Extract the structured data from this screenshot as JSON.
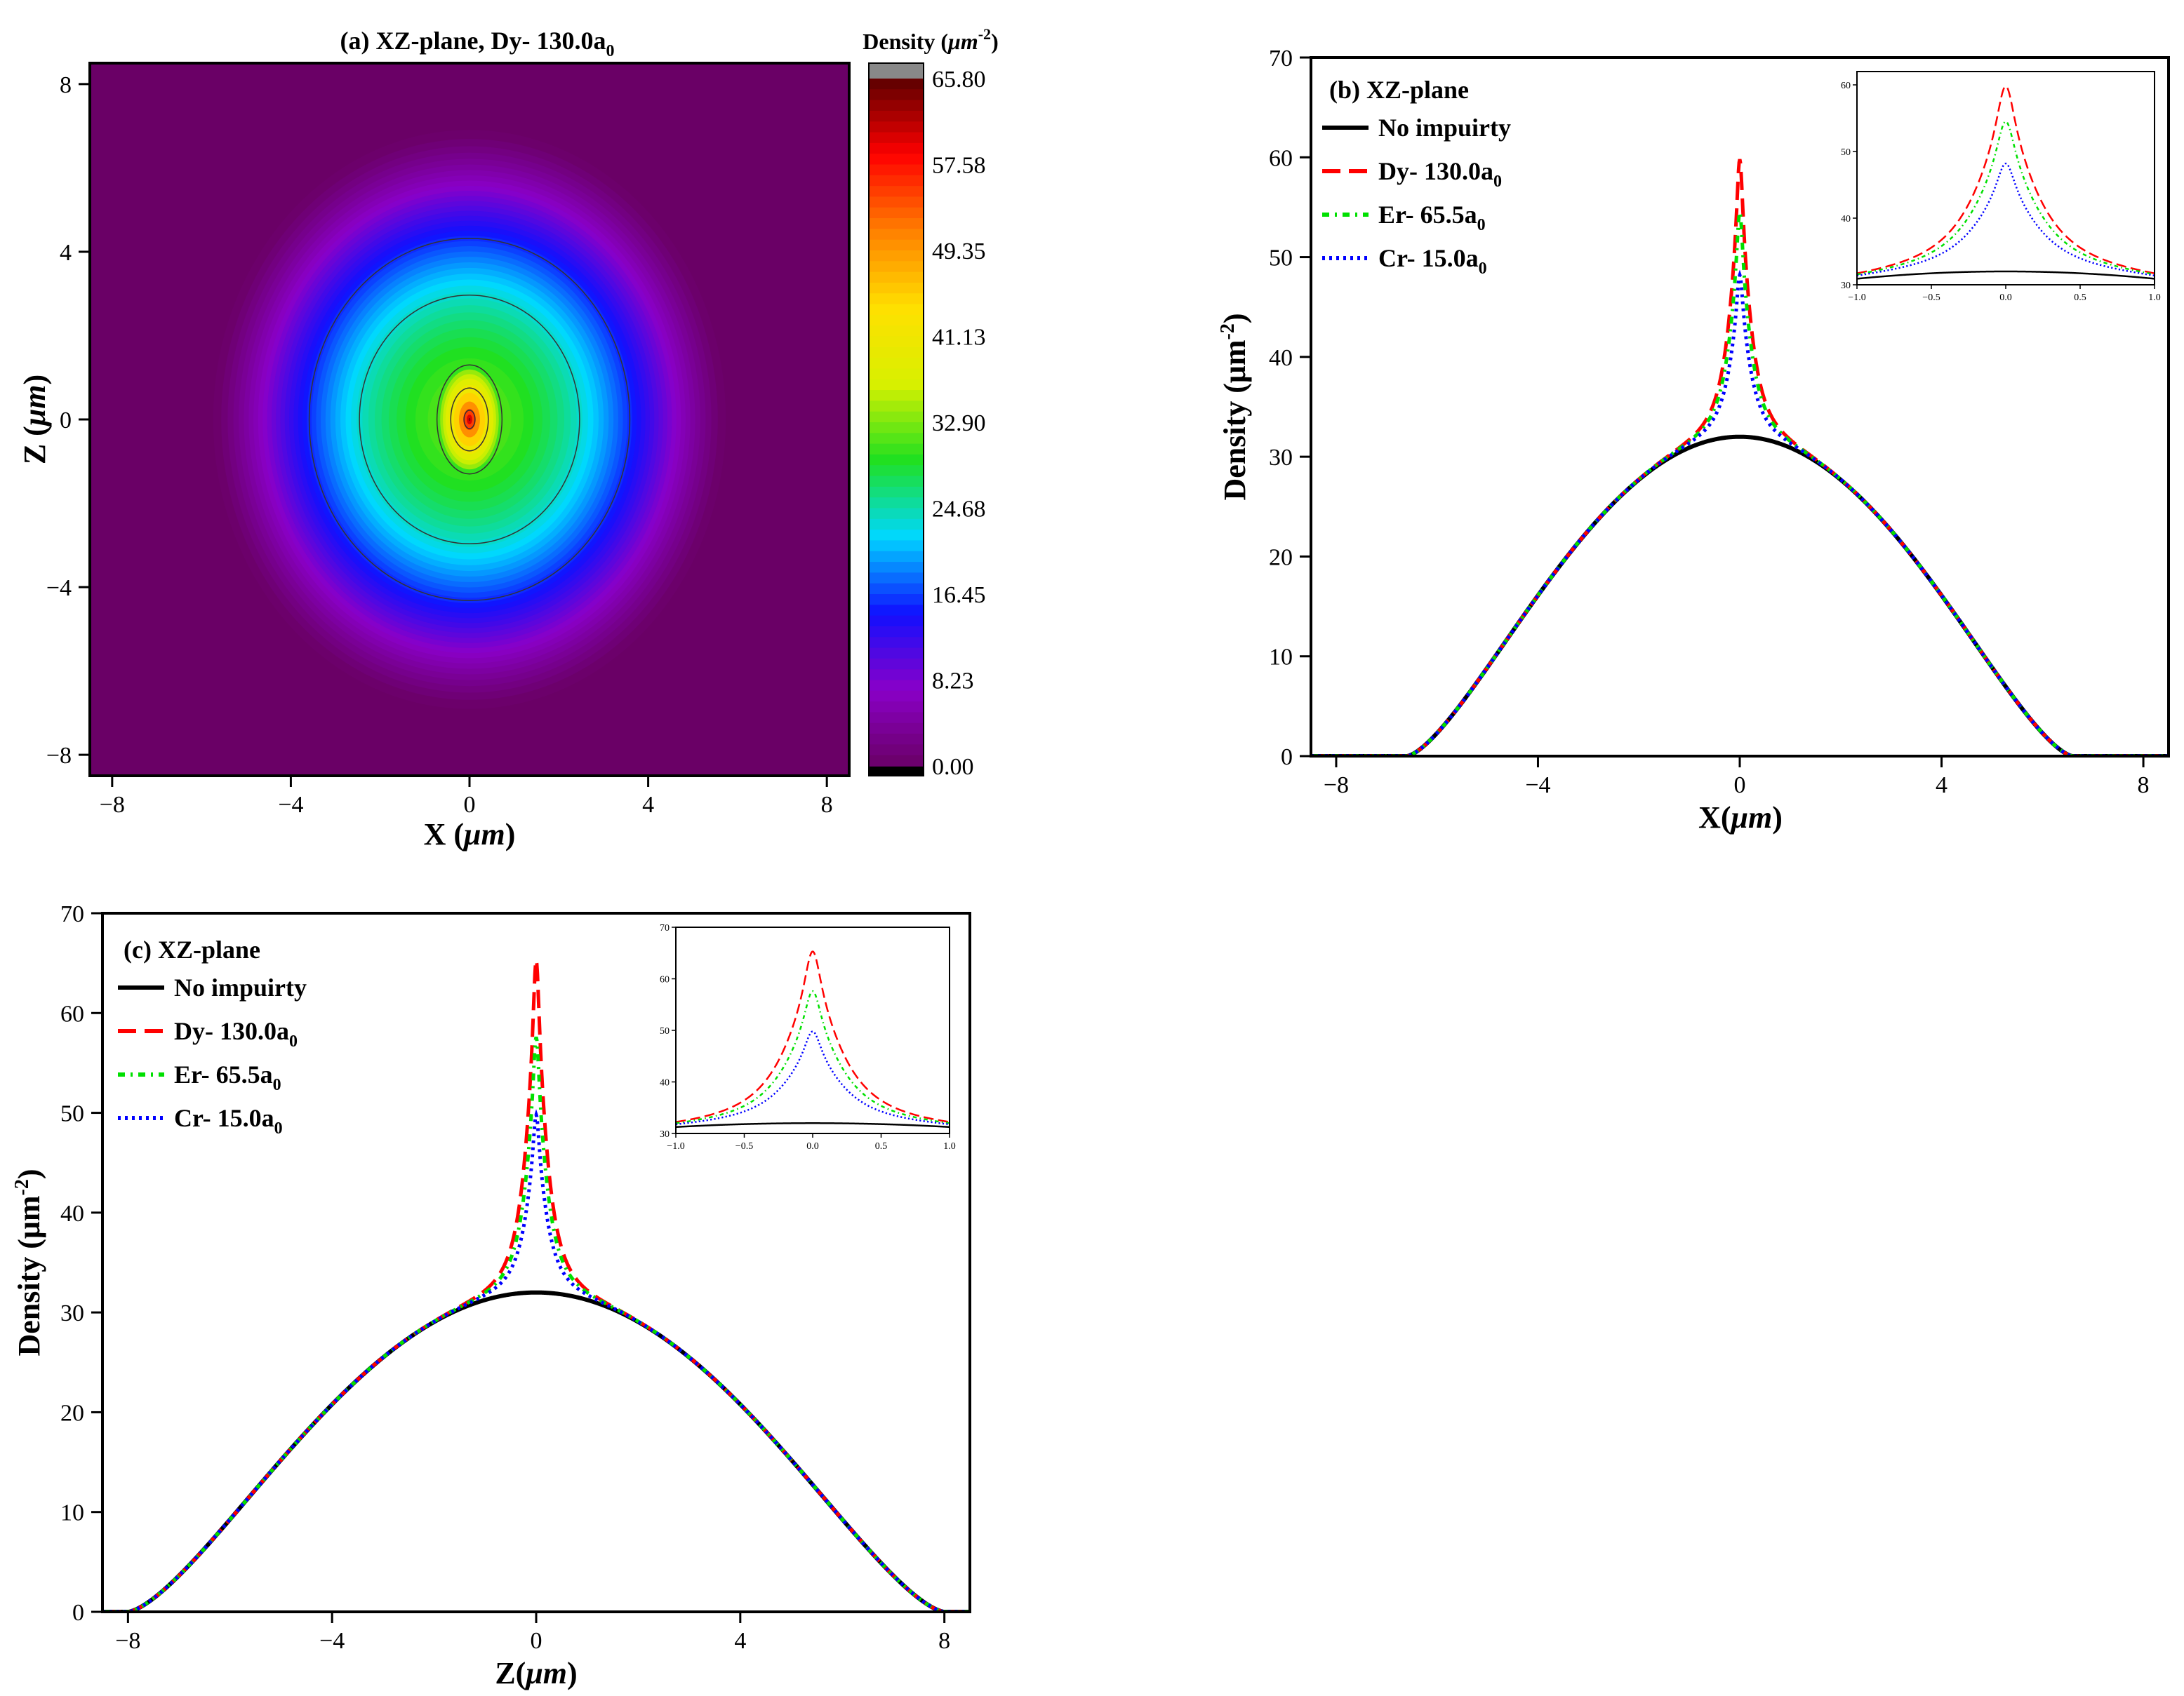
{
  "chart_data": [
    {
      "panel": "a",
      "type": "heatmap",
      "title": "(a) XZ-plane,  Dy- 130.0a₀",
      "xlabel": "X (μm)",
      "ylabel": "Z (μm)",
      "xlim": [
        -8.5,
        8.5
      ],
      "ylim": [
        -8.5,
        8.5
      ],
      "xticks": [
        "−8",
        "−4",
        "0",
        "4",
        "8"
      ],
      "yticks": [
        "8",
        "4",
        "0",
        "−4",
        "−8"
      ],
      "colorbar": {
        "label": "Density (μm⁻²)",
        "ticks": [
          "65.80",
          "57.58",
          "49.35",
          "41.13",
          "32.90",
          "24.68",
          "16.45",
          "8.23",
          "0.00"
        ],
        "range": [
          0,
          65.8
        ]
      },
      "field": {
        "peak_density": 65.8,
        "background_density": 32,
        "cloud_radius_x": 5.9,
        "cloud_radius_z": 7.1,
        "contours": [
          60,
          40,
          32,
          24,
          16
        ]
      },
      "colors": {
        "background": "#6a0066",
        "stops": [
          "#6a0066",
          "#8a00c8",
          "#1010ff",
          "#00d8ff",
          "#20e020",
          "#d8f000",
          "#ffe000",
          "#ff8000",
          "#ff0000",
          "#5a0000"
        ]
      }
    },
    {
      "panel": "b",
      "type": "line",
      "title": "(b) XZ-plane",
      "xlabel": "X(μm)",
      "ylabel": "Density (μm⁻²)",
      "xlim": [
        -8.5,
        8.5
      ],
      "ylim": [
        0,
        70
      ],
      "xticks": [
        "−8",
        "−4",
        "0",
        "4",
        "8"
      ],
      "yticks": [
        "0",
        "10",
        "20",
        "30",
        "40",
        "50",
        "60",
        "70"
      ],
      "series": [
        {
          "name": "No impuirty",
          "peak": 32,
          "color": "#000000",
          "dash": "solid"
        },
        {
          "name": "Dy- 130.0a₀",
          "peak": 59.8,
          "color": "#ff0000",
          "dash": "long-dash"
        },
        {
          "name": "Er- 65.5a₀",
          "peak": 54.5,
          "color": "#00e000",
          "dash": "dash-dot"
        },
        {
          "name": "Cr- 15.0a₀",
          "peak": 48.2,
          "color": "#0000ff",
          "dash": "dot"
        }
      ],
      "inset": {
        "xlim": [
          -1,
          1
        ],
        "ylim": [
          30,
          62
        ],
        "xticks": [
          "−1.0",
          "−0.5",
          "0.0",
          "0.5",
          "1.0"
        ],
        "yticks": [
          "30",
          "40",
          "50",
          "60"
        ]
      }
    },
    {
      "panel": "c",
      "type": "line",
      "title": "(c) XZ-plane",
      "xlabel": "Z(μm)",
      "ylabel": "Density (μm⁻²)",
      "xlim": [
        -8.5,
        8.5
      ],
      "ylim": [
        0,
        70
      ],
      "xticks": [
        "−8",
        "−4",
        "0",
        "4",
        "8"
      ],
      "yticks": [
        "0",
        "10",
        "20",
        "30",
        "40",
        "50",
        "60",
        "70"
      ],
      "series": [
        {
          "name": "No impuirty",
          "peak": 32,
          "color": "#000000",
          "dash": "solid"
        },
        {
          "name": "Dy- 130.0a₀",
          "peak": 65.3,
          "color": "#ff0000",
          "dash": "long-dash"
        },
        {
          "name": "Er- 65.5a₀",
          "peak": 57.6,
          "color": "#00e000",
          "dash": "dash-dot"
        },
        {
          "name": "Cr- 15.0a₀",
          "peak": 49.8,
          "color": "#0000ff",
          "dash": "dot"
        }
      ],
      "inset": {
        "xlim": [
          -1,
          1
        ],
        "ylim": [
          30,
          70
        ],
        "xticks": [
          "−1.0",
          "−0.5",
          "0.0",
          "0.5",
          "1.0"
        ],
        "yticks": [
          "30",
          "40",
          "50",
          "60",
          "70"
        ]
      }
    }
  ]
}
